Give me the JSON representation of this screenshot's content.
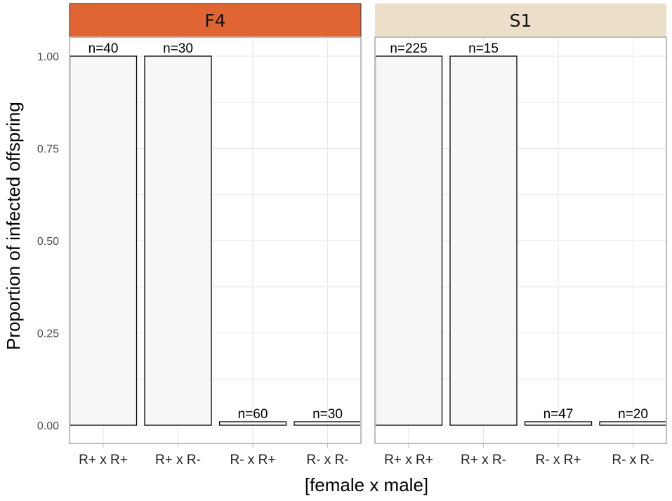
{
  "chart_data": {
    "type": "bar",
    "xlabel": "[female x male]",
    "ylabel": "Proportion of infected offspring",
    "ylim": [
      0,
      1.0
    ],
    "yticks": [
      "0.00",
      "0.25",
      "0.50",
      "0.75",
      "1.00"
    ],
    "grid": true,
    "legend": "none",
    "bar_fill": "#f7f7f7",
    "bar_stroke": "#000000",
    "panels": [
      {
        "name": "F4",
        "strip_color": "#e06533",
        "categories": [
          "R+ x R+",
          "R+ x R-",
          "R- x R+",
          "R- x R-"
        ],
        "values": [
          1.0,
          1.0,
          0.0,
          0.0
        ],
        "labels": [
          "n=40",
          "n=30",
          "n=60",
          "n=30"
        ]
      },
      {
        "name": "S1",
        "strip_color": "#ebdfca",
        "categories": [
          "R+ x R+",
          "R+ x R-",
          "R- x R+",
          "R- x R-"
        ],
        "values": [
          1.0,
          1.0,
          0.0,
          0.0
        ],
        "labels": [
          "n=225",
          "n=15",
          "n=47",
          "n=20"
        ]
      }
    ]
  }
}
